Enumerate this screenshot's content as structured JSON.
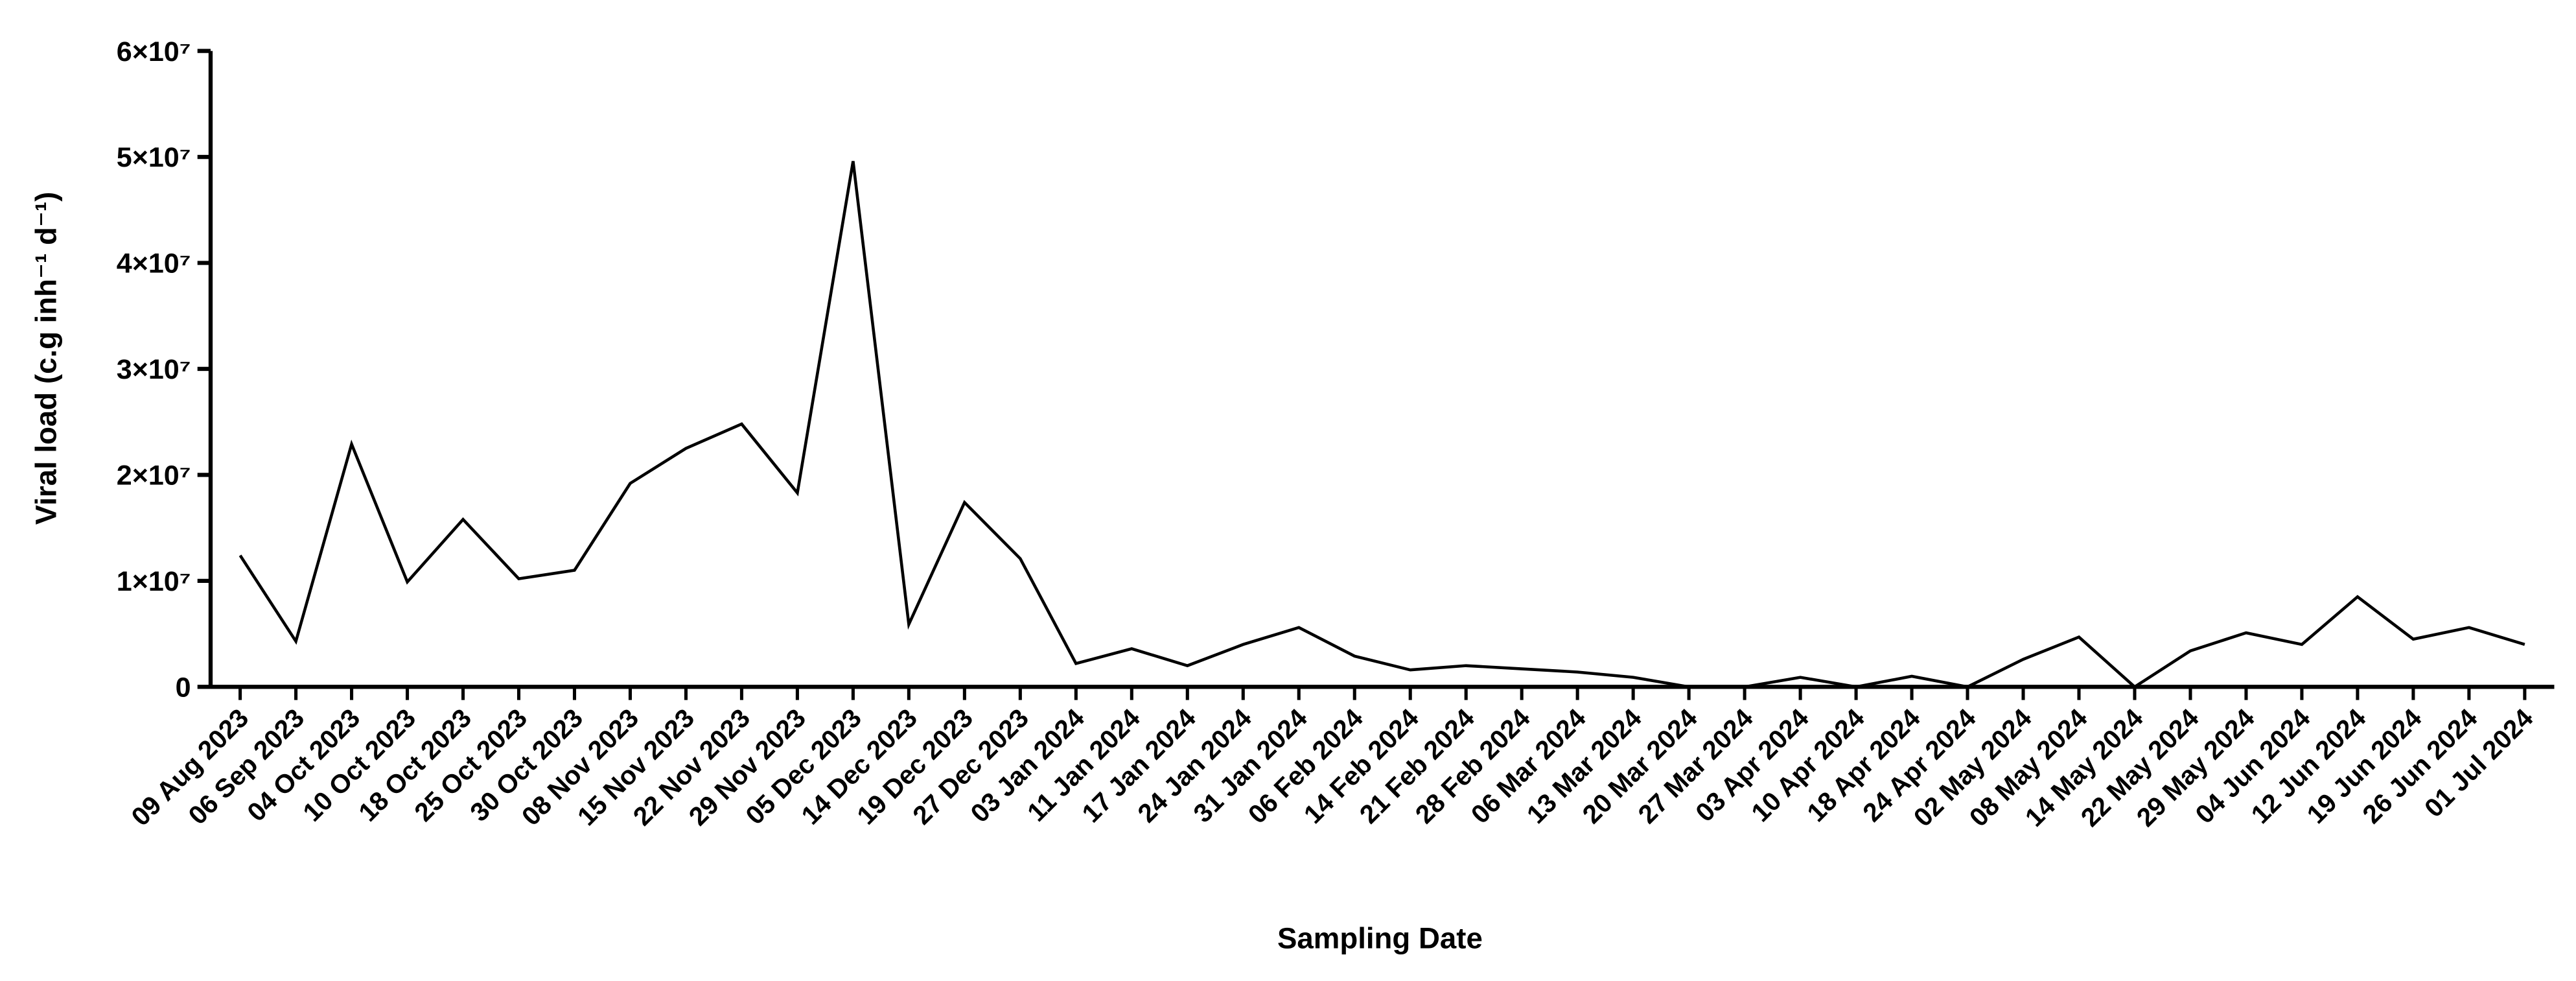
{
  "chart_data": {
    "type": "line",
    "x_label": "Sampling Date",
    "y_label": "Viral load (c.g inh⁻¹ d⁻¹)",
    "categories": [
      "09 Aug 2023",
      "06 Sep 2023",
      "04 Oct 2023",
      "10 Oct 2023",
      "18 Oct 2023",
      "25 Oct 2023",
      "30 Oct 2023",
      "08 Nov 2023",
      "15 Nov 2023",
      "22 Nov 2023",
      "29 Nov 2023",
      "05 Dec 2023",
      "14 Dec 2023",
      "19 Dec 2023",
      "27 Dec 2023",
      "03 Jan 2024",
      "11 Jan 2024",
      "17 Jan 2024",
      "24 Jan 2024",
      "31 Jan 2024",
      "06 Feb 2024",
      "14 Feb 2024",
      "21 Feb 2024",
      "28 Feb 2024",
      "06 Mar 2024",
      "13 Mar 2024",
      "20 Mar 2024",
      "27 Mar 2024",
      "03 Apr 2024",
      "10 Apr 2024",
      "18 Apr 2024",
      "24 Apr 2024",
      "02 May 2024",
      "08 May 2024",
      "14 May 2024",
      "22 May 2024",
      "29 May 2024",
      "04 Jun 2024",
      "12 Jun 2024",
      "19 Jun 2024",
      "26 Jun 2024",
      "01 Jul 2024"
    ],
    "values": [
      12400000,
      4300000,
      22900000,
      9900000,
      15800000,
      10200000,
      11000000,
      19200000,
      22500000,
      24800000,
      18300000,
      49600000,
      5900000,
      17400000,
      12100000,
      2200000,
      3600000,
      2000000,
      4000000,
      5600000,
      2900000,
      1600000,
      2000000,
      1700000,
      1400000,
      900000,
      0,
      0,
      900000,
      0,
      1000000,
      0,
      2600000,
      4700000,
      0,
      3400000,
      5100000,
      4000000,
      8500000,
      4500000,
      5600000,
      4000000
    ],
    "color": "#000000",
    "ylim": [
      0,
      60000000
    ],
    "yticks": [
      0,
      {
        "value": 10000000,
        "label": "1×10⁷"
      },
      {
        "value": 20000000,
        "label": "2×10⁷"
      },
      {
        "value": 30000000,
        "label": "3×10⁷"
      },
      {
        "value": 40000000,
        "label": "4×10⁷"
      },
      {
        "value": 50000000,
        "label": "5×10⁷"
      },
      {
        "value": 60000000,
        "label": "6×10⁷"
      }
    ]
  }
}
